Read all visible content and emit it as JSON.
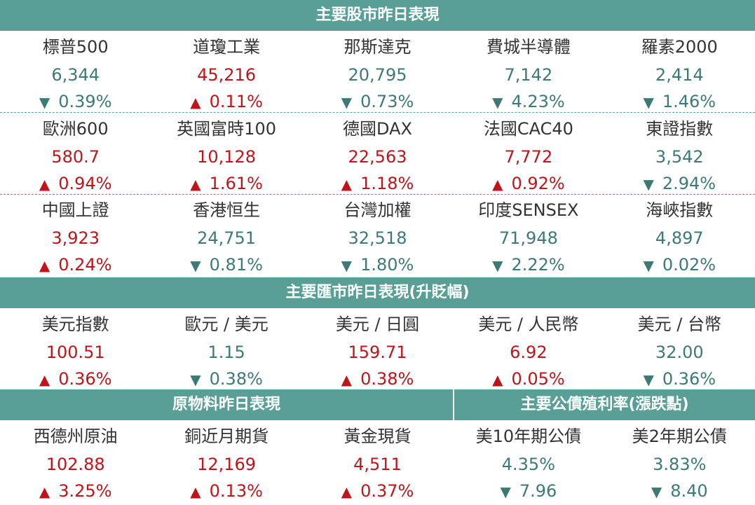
{
  "stocks": {
    "title": "主要股市昨日表現",
    "rows": [
      [
        {
          "name": "標普500",
          "value": "6,344",
          "dir": "down",
          "arrow": "▼",
          "change": "0.39%"
        },
        {
          "name": "道瓊工業",
          "value": "45,216",
          "dir": "up",
          "arrow": "▲",
          "change": "0.11%"
        },
        {
          "name": "那斯達克",
          "value": "20,795",
          "dir": "down",
          "arrow": "▼",
          "change": "0.73%"
        },
        {
          "name": "費城半導體",
          "value": "7,142",
          "dir": "down",
          "arrow": "▼",
          "change": "4.23%"
        },
        {
          "name": "羅素2000",
          "value": "2,414",
          "dir": "down",
          "arrow": "▼",
          "change": "1.46%"
        }
      ],
      [
        {
          "name": "歐洲600",
          "value": "580.7",
          "dir": "up",
          "arrow": "▲",
          "change": "0.94%"
        },
        {
          "name": "英國富時100",
          "value": "10,128",
          "dir": "up",
          "arrow": "▲",
          "change": "1.61%"
        },
        {
          "name": "德國DAX",
          "value": "22,563",
          "dir": "up",
          "arrow": "▲",
          "change": "1.18%"
        },
        {
          "name": "法國CAC40",
          "value": "7,772",
          "dir": "up",
          "arrow": "▲",
          "change": "0.92%"
        },
        {
          "name": "東證指數",
          "value": "3,542",
          "dir": "down",
          "arrow": "▼",
          "change": "2.94%"
        }
      ],
      [
        {
          "name": "中國上證",
          "value": "3,923",
          "dir": "up",
          "arrow": "▲",
          "change": "0.24%"
        },
        {
          "name": "香港恒生",
          "value": "24,751",
          "dir": "down",
          "arrow": "▼",
          "change": "0.81%"
        },
        {
          "name": "台灣加權",
          "value": "32,518",
          "dir": "down",
          "arrow": "▼",
          "change": "1.80%"
        },
        {
          "name": "印度SENSEX",
          "value": "71,948",
          "dir": "down",
          "arrow": "▼",
          "change": "2.22%"
        },
        {
          "name": "海峽指數",
          "value": "4,897",
          "dir": "down",
          "arrow": "▼",
          "change": "0.02%"
        }
      ]
    ]
  },
  "fx": {
    "title": "主要匯市昨日表現(升貶幅)",
    "items": [
      {
        "name": "美元指數",
        "value": "100.51",
        "dir": "up",
        "arrow": "▲",
        "change": "0.36%"
      },
      {
        "name": "歐元 / 美元",
        "value": "1.15",
        "dir": "down",
        "arrow": "▼",
        "change": "0.38%"
      },
      {
        "name": "美元 / 日圓",
        "value": "159.71",
        "dir": "up",
        "arrow": "▲",
        "change": "0.38%"
      },
      {
        "name": "美元 / 人民幣",
        "value": "6.92",
        "dir": "up",
        "arrow": "▲",
        "change": "0.05%"
      },
      {
        "name": "美元 / 台幣",
        "value": "32.00",
        "dir": "down",
        "arrow": "▼",
        "change": "0.36%"
      }
    ]
  },
  "commodities": {
    "title": "原物料昨日表現",
    "items": [
      {
        "name": "西德州原油",
        "value": "102.88",
        "dir": "up",
        "arrow": "▲",
        "change": "3.25%"
      },
      {
        "name": "銅近月期貨",
        "value": "12,169",
        "dir": "up",
        "arrow": "▲",
        "change": "0.13%"
      },
      {
        "name": "黃金現貨",
        "value": "4,511",
        "dir": "up",
        "arrow": "▲",
        "change": "0.37%"
      }
    ]
  },
  "bonds": {
    "title": "主要公債殖利率(漲跌點)",
    "items": [
      {
        "name": "美10年期公債",
        "value": "4.35%",
        "dir": "down",
        "arrow": "▼",
        "change": "7.96"
      },
      {
        "name": "美2年期公債",
        "value": "3.83%",
        "dir": "down",
        "arrow": "▼",
        "change": "8.40"
      }
    ]
  },
  "colors": {
    "header": "#5a9f96",
    "up": "#c0141b",
    "down": "#3d7a74",
    "label": "#333333"
  }
}
